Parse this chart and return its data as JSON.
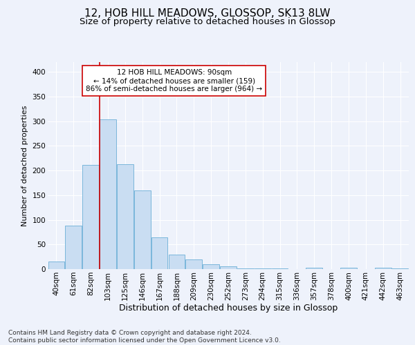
{
  "title": "12, HOB HILL MEADOWS, GLOSSOP, SK13 8LW",
  "subtitle": "Size of property relative to detached houses in Glossop",
  "xlabel": "Distribution of detached houses by size in Glossop",
  "ylabel": "Number of detached properties",
  "categories": [
    "40sqm",
    "61sqm",
    "82sqm",
    "103sqm",
    "125sqm",
    "146sqm",
    "167sqm",
    "188sqm",
    "209sqm",
    "230sqm",
    "252sqm",
    "273sqm",
    "294sqm",
    "315sqm",
    "336sqm",
    "357sqm",
    "378sqm",
    "400sqm",
    "421sqm",
    "442sqm",
    "463sqm"
  ],
  "values": [
    16,
    88,
    211,
    304,
    213,
    160,
    65,
    30,
    20,
    10,
    5,
    1,
    2,
    1,
    0,
    3,
    0,
    3,
    0,
    3,
    2
  ],
  "bar_color": "#c9ddf2",
  "bar_edge_color": "#6aaed6",
  "vline_x": 2.5,
  "vline_color": "#cc0000",
  "annotation_text": "12 HOB HILL MEADOWS: 90sqm\n← 14% of detached houses are smaller (159)\n86% of semi-detached houses are larger (964) →",
  "annotation_box_color": "white",
  "annotation_box_edge": "#cc0000",
  "ylim": [
    0,
    420
  ],
  "yticks": [
    0,
    50,
    100,
    150,
    200,
    250,
    300,
    350,
    400
  ],
  "bg_color": "#eef2fb",
  "plot_bg": "#eef2fb",
  "grid_color": "#ffffff",
  "footer": "Contains HM Land Registry data © Crown copyright and database right 2024.\nContains public sector information licensed under the Open Government Licence v3.0.",
  "title_fontsize": 11,
  "subtitle_fontsize": 9.5,
  "xlabel_fontsize": 9,
  "ylabel_fontsize": 8,
  "tick_fontsize": 7.5,
  "annotation_fontsize": 7.5,
  "footer_fontsize": 6.5
}
